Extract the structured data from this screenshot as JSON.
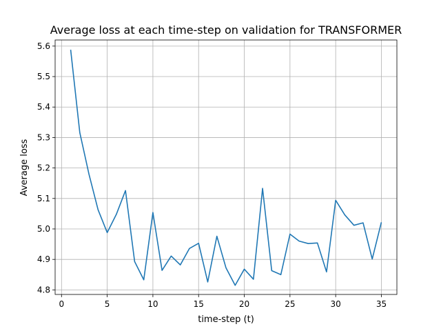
{
  "chart_data": {
    "type": "line",
    "title": "Average loss at each time-step on validation for TRANSFORMER",
    "xlabel": "time-step (t)",
    "ylabel": "Average loss",
    "xlim": [
      -0.7,
      36.7
    ],
    "ylim": [
      4.785,
      5.62
    ],
    "xticks": [
      0,
      5,
      10,
      15,
      20,
      25,
      30,
      35
    ],
    "yticks": [
      4.8,
      4.9,
      5.0,
      5.1,
      5.2,
      5.3,
      5.4,
      5.5,
      5.6
    ],
    "grid": true,
    "series": [
      {
        "color": "#1f77b4",
        "x": [
          1,
          2,
          3,
          4,
          5,
          6,
          7,
          8,
          9,
          10,
          11,
          12,
          13,
          14,
          15,
          16,
          17,
          18,
          19,
          20,
          21,
          22,
          23,
          24,
          25,
          26,
          27,
          28,
          29,
          30,
          31,
          32,
          33,
          34,
          35
        ],
        "y": [
          5.588,
          5.316,
          5.18,
          5.063,
          4.988,
          5.048,
          5.126,
          4.893,
          4.833,
          5.054,
          4.864,
          4.911,
          4.882,
          4.936,
          4.953,
          4.826,
          4.976,
          4.872,
          4.815,
          4.868,
          4.835,
          5.133,
          4.863,
          4.85,
          4.983,
          4.96,
          4.952,
          4.954,
          4.859,
          5.094,
          5.046,
          5.012,
          5.02,
          4.901,
          5.022
        ]
      }
    ]
  }
}
